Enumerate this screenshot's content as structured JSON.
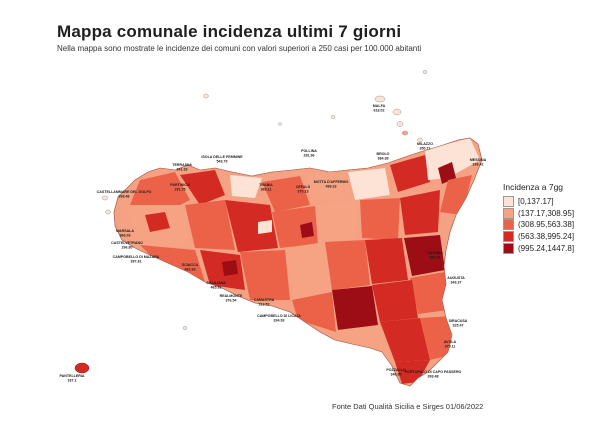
{
  "title": "Mappa comunale incidenza ultimi 7 giorni",
  "subtitle": "Nella mappa sono mostrate le incidenze dei comuni con valori superiori a 250 casi per 100.000 abitanti",
  "legend": {
    "title": "Incidenza a 7gg",
    "classes": [
      {
        "label": "[0,137.17]",
        "color": "#fde3d6"
      },
      {
        "label": "(137.17,308.95]",
        "color": "#f6a383"
      },
      {
        "label": "(308.95,563.38]",
        "color": "#ec6248"
      },
      {
        "label": "(563.38,995.24]",
        "color": "#d42a24"
      },
      {
        "label": "(995.24,1447.8]",
        "color": "#9c0d16"
      }
    ]
  },
  "source": "Fonte Dati Qualità Sicilia e Sirges 01/06/2022",
  "labels": [
    {
      "name": "MALFA",
      "value": "618.02"
    },
    {
      "name": "MILAZZO",
      "value": "350.71"
    },
    {
      "name": "BROLO",
      "value": "384.38"
    },
    {
      "name": "MESSINA",
      "value": "299.42"
    },
    {
      "name": "POLLINA",
      "value": "281.96"
    },
    {
      "name": "MOTTA D'AFFERMO",
      "value": "499.23"
    },
    {
      "name": "ISOLA DELLE FEMMINE",
      "value": "543.79"
    },
    {
      "name": "TERRASINI",
      "value": "341.33"
    },
    {
      "name": "PARTINICO",
      "value": "291.75"
    },
    {
      "name": "CASTELLAMMARE DEL GOLFO",
      "value": "268.46"
    },
    {
      "name": "TRABIA",
      "value": "369.11"
    },
    {
      "name": "CEFALÙ",
      "value": "370.13"
    },
    {
      "name": "MARSALA",
      "value": "366.03"
    },
    {
      "name": "CASTELVETRANO",
      "value": "296.80"
    },
    {
      "name": "CAMPOBELLO DI MAZARA",
      "value": "397.81"
    },
    {
      "name": "SCIACCA",
      "value": "462.93"
    },
    {
      "name": "SICULIANA",
      "value": "465.91"
    },
    {
      "name": "REALMONTE",
      "value": "376.54"
    },
    {
      "name": "CAMASTRA",
      "value": "313.52"
    },
    {
      "name": "CAMPOBELLO DI LICATA",
      "value": "334.93"
    },
    {
      "name": "CATANIA",
      "value": "324.31"
    },
    {
      "name": "AUGUSTA",
      "value": "343.37"
    },
    {
      "name": "SIRACUSA",
      "value": "325.47"
    },
    {
      "name": "AVOLA",
      "value": "379.11"
    },
    {
      "name": "POZZALLO",
      "value": "346.90"
    },
    {
      "name": "PORTOPALO DI CAPO PASSERO",
      "value": "393.48"
    },
    {
      "name": "PANTELLERIA",
      "value": "337.2"
    }
  ]
}
